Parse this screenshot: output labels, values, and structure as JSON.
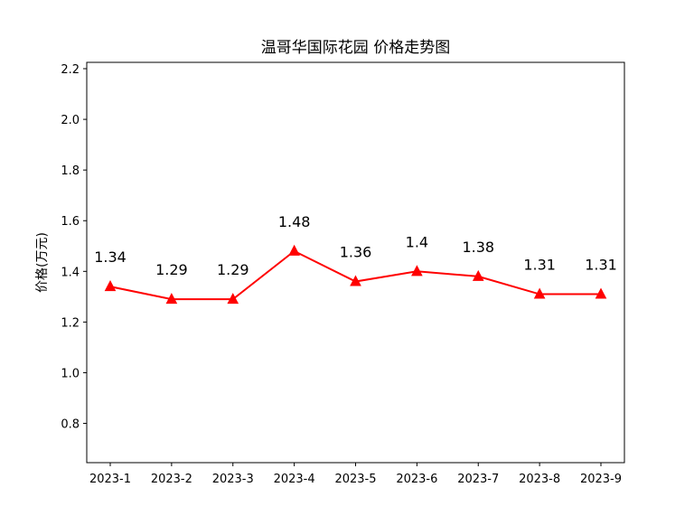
{
  "chart_data": {
    "type": "line",
    "title": "温哥华国际花园 价格走势图",
    "xlabel": "",
    "ylabel": "价格(万元)",
    "categories": [
      "2023-1",
      "2023-2",
      "2023-3",
      "2023-4",
      "2023-5",
      "2023-6",
      "2023-7",
      "2023-8",
      "2023-9"
    ],
    "series": [
      {
        "values": [
          1.34,
          1.29,
          1.29,
          1.48,
          1.36,
          1.4,
          1.38,
          1.31,
          1.31
        ],
        "data_labels": [
          "1.34",
          "1.29",
          "1.29",
          "1.48",
          "1.36",
          "1.4",
          "1.38",
          "1.31",
          "1.31"
        ],
        "color": "#ff0000",
        "marker": "triangle-up"
      }
    ],
    "ylim": [
      0.645,
      2.225
    ],
    "yticks": [
      0.8,
      1.0,
      1.2,
      1.4,
      1.6,
      1.8,
      2.0,
      2.2
    ],
    "ytick_labels": [
      "0.8",
      "1.0",
      "1.2",
      "1.4",
      "1.6",
      "1.8",
      "2.0",
      "2.2"
    ],
    "grid": false,
    "legend": "none"
  }
}
